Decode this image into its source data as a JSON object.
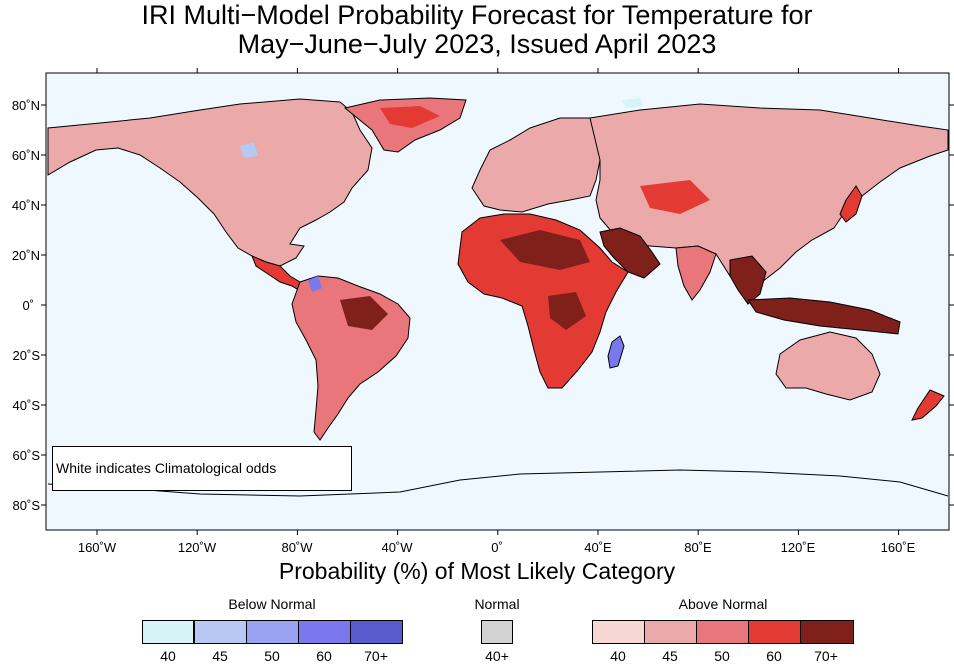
{
  "title": {
    "line1": "IRI Multi−Model Probability Forecast for Temperature for",
    "line2": "May−June−July 2023, Issued April 2023"
  },
  "map": {
    "ocean_color": "#f0f8ff",
    "lat_labels": [
      "80˚N",
      "60˚N",
      "40˚N",
      "20˚N",
      "0˚",
      "20˚S",
      "40˚S",
      "60˚S",
      "80˚S"
    ],
    "lon_labels": [
      "160˚W",
      "120˚W",
      "80˚W",
      "40˚W",
      "0˚",
      "40˚E",
      "80˚E",
      "120˚E",
      "160˚E"
    ],
    "note": "White indicates Climatological odds"
  },
  "xlabel": "Probability (%) of Most Likely Category",
  "legend": {
    "below": {
      "title": "Below Normal",
      "colors": [
        "#d6f4f8",
        "#b7c8f3",
        "#9aa2f2",
        "#7a78ec",
        "#5a5bcc"
      ],
      "labels": [
        "40",
        "45",
        "50",
        "60",
        "70+"
      ]
    },
    "normal": {
      "title": "Normal",
      "colors": [
        "#d2d2d2"
      ],
      "labels": [
        "40+"
      ]
    },
    "above": {
      "title": "Above Normal",
      "colors": [
        "#f8d6d4",
        "#eca9a9",
        "#e8767a",
        "#e33b34",
        "#7f201b"
      ],
      "labels": [
        "40",
        "45",
        "50",
        "60",
        "70+"
      ]
    }
  }
}
